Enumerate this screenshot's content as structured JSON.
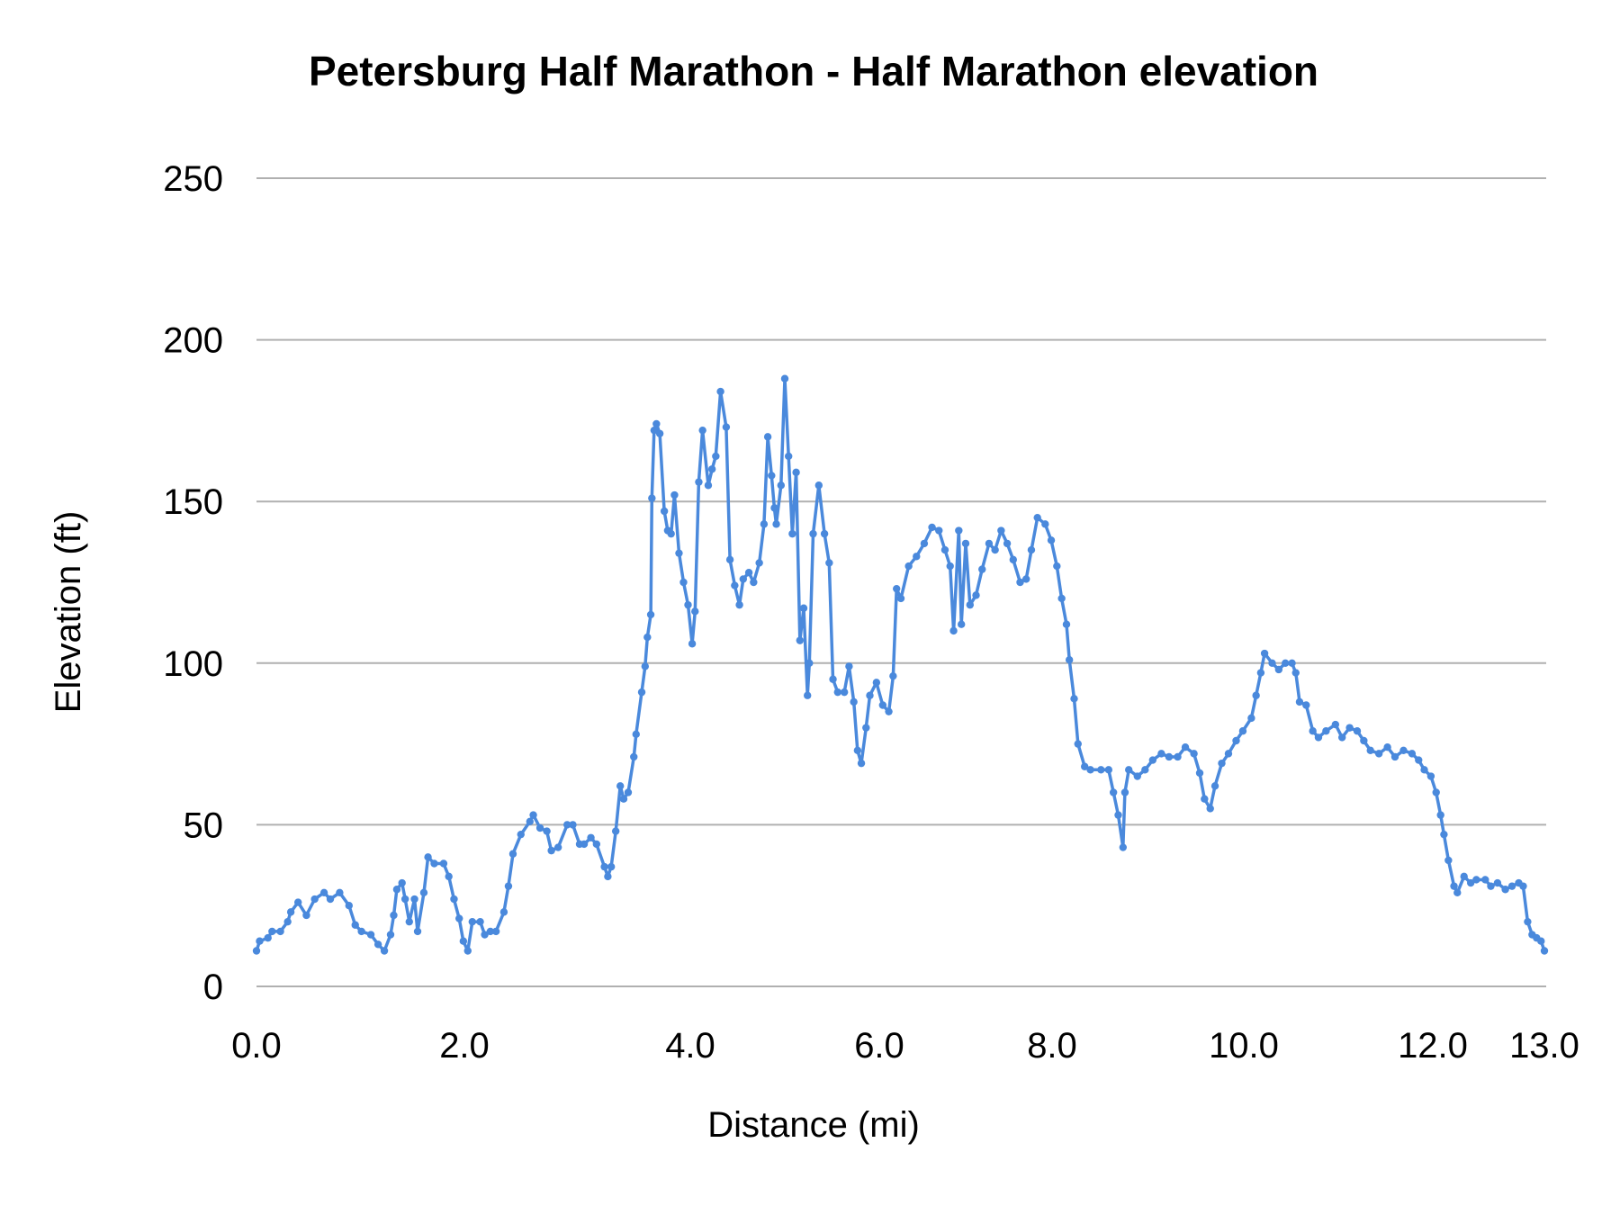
{
  "chart_data": {
    "type": "line",
    "title": "Petersburg Half Marathon  - Half Marathon elevation",
    "xlabel": "Distance (mi)",
    "ylabel": "Elevation (ft)",
    "ylim": [
      0,
      250
    ],
    "xlim": [
      0,
      13
    ],
    "y_ticks": [
      "0",
      "50",
      "100",
      "150",
      "200",
      "250"
    ],
    "x_ticks": [
      "0.0",
      "2.0",
      "4.0",
      "6.0",
      "8.0",
      "10.0",
      "12.0",
      "13.0"
    ],
    "grid": "horizontal",
    "legend": "none",
    "markers": true,
    "color": "#4a89dc",
    "series": [
      {
        "x": [
          0.0,
          0.03,
          0.11,
          0.15,
          0.23,
          0.3,
          0.33,
          0.4,
          0.48,
          0.56,
          0.65,
          0.71,
          0.8,
          0.89,
          0.95,
          1.01,
          1.1,
          1.17,
          1.23,
          1.29,
          1.32,
          1.35,
          1.4,
          1.43,
          1.47,
          1.52,
          1.55,
          1.61,
          1.65,
          1.71,
          1.8,
          1.85,
          1.9,
          1.95,
          1.99,
          2.03,
          2.07,
          2.14,
          2.18,
          2.23,
          2.28,
          2.35,
          2.39,
          2.43,
          2.5,
          2.58,
          2.61,
          2.67,
          2.73,
          2.77,
          2.83,
          2.91,
          2.96,
          3.02,
          3.06,
          3.12,
          3.17,
          3.24,
          3.27,
          3.3,
          3.34,
          3.38,
          3.41,
          3.45,
          3.5,
          3.52,
          3.57,
          3.6,
          3.62,
          3.65,
          3.66,
          3.68,
          3.7,
          3.73,
          3.77,
          3.8,
          3.83,
          3.86,
          3.9,
          3.94,
          3.98,
          4.02,
          4.05,
          4.09,
          4.13,
          4.19,
          4.23,
          4.27,
          4.32,
          4.38,
          4.42,
          4.47,
          4.52,
          4.56,
          4.62,
          4.67,
          4.73,
          4.78,
          4.82,
          4.86,
          4.89,
          4.91,
          4.96,
          5.0,
          5.04,
          5.08,
          5.12,
          5.16,
          5.2,
          5.24,
          5.26,
          5.3,
          5.36,
          5.42,
          5.47,
          5.51,
          5.56,
          5.63,
          5.68,
          5.73,
          5.77,
          5.81,
          5.86,
          5.9,
          5.97,
          6.04,
          6.11,
          6.16,
          6.2,
          6.25,
          6.34,
          6.43,
          6.52,
          6.61,
          6.69,
          6.76,
          6.82,
          6.86,
          6.92,
          6.95,
          7.0,
          7.05,
          7.12,
          7.19,
          7.27,
          7.34,
          7.41,
          7.48,
          7.55,
          7.63,
          7.7,
          7.76,
          7.83,
          7.92,
          7.99,
          8.05,
          8.1,
          8.15,
          8.18,
          8.23,
          8.27,
          8.34,
          8.4,
          8.51,
          8.59,
          8.64,
          8.69,
          8.74,
          8.76,
          8.8,
          8.89,
          8.97,
          9.05,
          9.14,
          9.22,
          9.31,
          9.39,
          9.48,
          9.54,
          9.59,
          9.65,
          9.7,
          9.77,
          9.84,
          9.92,
          9.99,
          10.08,
          10.13,
          10.18,
          10.22,
          10.3,
          10.37,
          10.44,
          10.51,
          10.55,
          10.59,
          10.66,
          10.73,
          10.79,
          10.87,
          10.97,
          11.04,
          11.12,
          11.2,
          11.27,
          11.34,
          11.43,
          11.52,
          11.6,
          11.69,
          11.78,
          11.85,
          11.91,
          11.98,
          12.03,
          12.07,
          12.1,
          12.14,
          12.19,
          12.22,
          12.28,
          12.34,
          12.39,
          12.47,
          12.52,
          12.58,
          12.65,
          12.71,
          12.77,
          12.81,
          12.85,
          12.89,
          12.93,
          12.97,
          13.0
        ],
        "y": [
          11,
          14,
          15,
          17,
          17,
          20,
          23,
          26,
          22,
          27,
          29,
          27,
          29,
          25,
          19,
          17,
          16,
          13,
          11,
          16,
          22,
          30,
          32,
          27,
          20,
          27,
          17,
          29,
          40,
          38,
          38,
          34,
          27,
          21,
          14,
          11,
          20,
          20,
          16,
          17,
          17,
          23,
          31,
          41,
          47,
          51,
          53,
          49,
          48,
          42,
          43,
          50,
          50,
          44,
          44,
          46,
          44,
          37,
          34,
          37,
          48,
          62,
          58,
          60,
          71,
          78,
          91,
          99,
          108,
          115,
          151,
          172,
          174,
          171,
          147,
          141,
          140,
          152,
          134,
          125,
          118,
          106,
          116,
          156,
          172,
          155,
          160,
          164,
          184,
          173,
          132,
          124,
          118,
          126,
          128,
          125,
          131,
          143,
          170,
          158,
          148,
          143,
          155,
          188,
          164,
          140,
          159,
          107,
          117,
          90,
          100,
          140,
          155,
          140,
          131,
          95,
          91,
          91,
          99,
          88,
          73,
          69,
          80,
          90,
          94,
          87,
          85,
          96,
          123,
          120,
          130,
          133,
          137,
          142,
          141,
          135,
          130,
          110,
          141,
          112,
          137,
          118,
          121,
          129,
          137,
          135,
          141,
          137,
          132,
          125,
          126,
          135,
          145,
          143,
          138,
          130,
          120,
          112,
          101,
          89,
          75,
          68,
          67,
          67,
          67,
          60,
          53,
          43,
          60,
          67,
          65,
          67,
          70,
          72,
          71,
          71,
          74,
          72,
          66,
          58,
          55,
          62,
          69,
          72,
          76,
          79,
          83,
          90,
          97,
          103,
          100,
          98,
          100,
          100,
          97,
          88,
          87,
          79,
          77,
          79,
          81,
          77,
          80,
          79,
          76,
          73,
          72,
          74,
          71,
          73,
          72,
          70,
          67,
          65,
          60,
          53,
          47,
          39,
          31,
          29,
          34,
          32,
          33,
          33,
          31,
          32,
          30,
          31,
          32,
          31,
          20,
          16,
          15,
          14,
          11
        ]
      }
    ]
  }
}
